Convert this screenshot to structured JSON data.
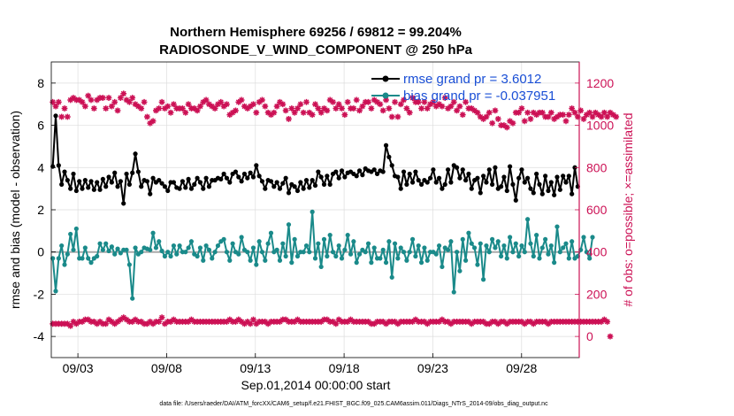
{
  "chart_data": {
    "type": "line",
    "title_line1": "Northern Hemisphere 69256 / 69812 = 99.204%",
    "title_line2": "RADIOSONDE_V_WIND_COMPONENT @ 250 hPa",
    "xlabel": "Sep.01,2014 00:00:00 start",
    "ylabel_left": "rmse and bias (model - observation)",
    "ylabel_right": "# of obs: o=possible; ×=assimilated",
    "footer": "data file: /Users/raeder/DAI/ATM_forcXX/CAM6_setup/f.e21.FHIST_BGC.f09_025.CAM6assim.011/Diags_NTrS_2014-09/obs_diag_output.nc",
    "x_range": [
      1.5,
      31.25
    ],
    "x_ticks": [
      3,
      8,
      13,
      18,
      23,
      28
    ],
    "x_tick_labels": [
      "09/03",
      "09/08",
      "09/13",
      "09/18",
      "09/23",
      "09/28"
    ],
    "ylim_left": [
      -5,
      9
    ],
    "yticks_left": [
      -4,
      -2,
      0,
      2,
      4,
      6,
      8
    ],
    "ylim_right": [
      -100,
      1300
    ],
    "yticks_right": [
      0,
      200,
      400,
      600,
      800,
      1000,
      1200
    ],
    "colors": {
      "rmse": "#000000",
      "bias": "#1a8a8a",
      "obs": "#cc1155",
      "zero": "#aaaaaa",
      "legend_text": "#1a4fd6",
      "grid": "#dddddd"
    },
    "legend": [
      {
        "label": "rmse grand pr = 3.6012",
        "series": "rmse"
      },
      {
        "label": "bias grand pr = -0.037951",
        "series": "bias"
      }
    ],
    "series": [
      {
        "name": "rmse",
        "axis": "left",
        "values": [
          4.05,
          6.45,
          4.1,
          3.2,
          3.8,
          3.4,
          3.0,
          3.7,
          2.9,
          3.35,
          3.0,
          3.4,
          3.05,
          3.35,
          2.95,
          3.3,
          2.95,
          3.45,
          3.1,
          3.55,
          3.3,
          3.75,
          3.1,
          3.35,
          2.3,
          3.7,
          3.2,
          3.75,
          4.65,
          3.8,
          3.1,
          3.4,
          3.35,
          2.75,
          3.5,
          3.3,
          3.4,
          3.25,
          3.1,
          2.9,
          3.3,
          3.3,
          3.05,
          3.0,
          3.35,
          3.05,
          3.45,
          3.0,
          3.2,
          3.5,
          3.3,
          3.0,
          3.5,
          3.1,
          3.4,
          3.4,
          3.5,
          3.45,
          3.7,
          3.5,
          3.3,
          3.7,
          3.8,
          3.55,
          3.35,
          3.7,
          3.5,
          3.75,
          3.55,
          4.1,
          3.6,
          3.35,
          3.0,
          3.4,
          3.35,
          3.1,
          3.3,
          3.0,
          3.25,
          3.5,
          2.8,
          3.2,
          3.1,
          2.9,
          3.3,
          3.0,
          3.4,
          3.05,
          3.4,
          3.15,
          3.8,
          3.55,
          3.2,
          3.6,
          3.2,
          3.7,
          3.8,
          3.5,
          3.85,
          3.55,
          3.75,
          3.8,
          3.7,
          3.6,
          3.85,
          3.65,
          3.95,
          3.85,
          3.8,
          3.9,
          3.7,
          3.85,
          3.8,
          5.05,
          4.5,
          4.1,
          3.6,
          3.55,
          3.0,
          3.8,
          3.2,
          3.7,
          3.3,
          3.8,
          3.4,
          3.2,
          3.4,
          3.3,
          3.5,
          3.9,
          3.3,
          3.5,
          3.0,
          3.2,
          3.9,
          3.3,
          4.1,
          4.0,
          3.5,
          3.9,
          3.4,
          3.7,
          3.0,
          3.4,
          3.5,
          2.8,
          3.6,
          3.3,
          3.9,
          3.2,
          4.0,
          3.0,
          3.1,
          3.55,
          2.9,
          4.05,
          3.2,
          2.45,
          3.5,
          3.9,
          3.3,
          3.5,
          3.0,
          2.8,
          3.7,
          3.2,
          2.75,
          3.6,
          2.9,
          3.3,
          2.7,
          3.55,
          2.95,
          3.6,
          3.3,
          3.6,
          2.75,
          4.0,
          3.1
        ]
      },
      {
        "name": "bias",
        "axis": "left",
        "values": [
          -0.3,
          -1.85,
          -0.3,
          0.3,
          -0.6,
          -0.1,
          0.85,
          0.1,
          1.1,
          -0.3,
          -0.3,
          0.2,
          -0.3,
          -0.5,
          -0.3,
          -0.2,
          0.4,
          0.1,
          0.4,
          0.05,
          0.25,
          -0.1,
          0.15,
          -0.05,
          0.1,
          0.1,
          -0.6,
          -2.2,
          0.2,
          -0.1,
          0.0,
          0.2,
          0.15,
          0.1,
          0.9,
          0.2,
          0.5,
          0.05,
          -0.2,
          0.0,
          -0.2,
          0.3,
          -0.1,
          0.3,
          0.0,
          0.0,
          0.2,
          0.5,
          -0.1,
          -0.2,
          0.2,
          -0.4,
          0.3,
          0.1,
          -0.3,
          0.0,
          0.3,
          0.5,
          0.6,
          0.0,
          -0.4,
          0.4,
          0.0,
          -0.1,
          0.7,
          0.1,
          0.0,
          -0.4,
          0.2,
          -0.6,
          0.5,
          0.0,
          -0.4,
          0.4,
          0.9,
          0.0,
          0.1,
          -0.4,
          0.4,
          -0.2,
          1.3,
          -0.5,
          0.6,
          -0.2,
          0.0,
          0.0,
          0.3,
          0.0,
          1.9,
          -0.3,
          0.4,
          -0.7,
          0.6,
          -0.2,
          0.8,
          0.0,
          -0.2,
          0.3,
          -0.3,
          0.1,
          0.8,
          -0.1,
          0.5,
          -0.5,
          -0.1,
          0.1,
          0.0,
          0.4,
          -0.5,
          0.2,
          -0.3,
          -0.3,
          0.1,
          -0.5,
          0.5,
          -1.2,
          0.4,
          -0.3,
          0.2,
          0.0,
          -0.4,
          0.0,
          0.6,
          -0.2,
          0.3,
          -0.5,
          0.2,
          -0.4,
          0.0,
          0.0,
          -0.1,
          0.3,
          -0.7,
          0.2,
          0.1,
          0.5,
          -1.9,
          0.0,
          -0.9,
          0.6,
          -0.4,
          0.9,
          0.4,
          0.2,
          -0.6,
          0.4,
          -1.3,
          0.3,
          0.0,
          0.6,
          0.2,
          0.5,
          -0.2,
          0.3,
          -0.3,
          0.7,
          0.0,
          0.4,
          -0.2,
          0.3,
          0.0,
          1.55,
          0.4,
          -0.2,
          0.8,
          -0.3,
          0.2,
          0.6,
          -0.1,
          0.3,
          -0.5,
          1.2,
          0.0,
          0.2,
          0.4,
          -0.3,
          0.5,
          -0.3,
          -0.2,
          0.1,
          0.7,
          0.0,
          -0.3,
          0.7
        ]
      },
      {
        "name": "obs_possible",
        "axis": "right",
        "values": [
          1110,
          1090,
          1110,
          1040,
          1080,
          1040,
          1120,
          1130,
          1120,
          1120,
          1110,
          1090,
          1140,
          1120,
          1080,
          1120,
          1130,
          1130,
          1080,
          1130,
          1090,
          1110,
          1070,
          1130,
          1150,
          1120,
          1110,
          1130,
          1100,
          1090,
          1080,
          1110,
          1040,
          1010,
          1020,
          1070,
          1080,
          1110,
          1080,
          1090,
          1060,
          1100,
          1080,
          1080,
          1080,
          1060,
          1100,
          1080,
          1080,
          1070,
          1090,
          1110,
          1120,
          1100,
          1090,
          1080,
          1100,
          1110,
          1090,
          1100,
          1050,
          1060,
          1070,
          1110,
          1120,
          1090,
          1080,
          1090,
          1100,
          1060,
          1110,
          1120,
          1090,
          1060,
          1050,
          1060,
          1090,
          1110,
          1100,
          1070,
          1030,
          1080,
          1060,
          1080,
          1100,
          1060,
          1110,
          1060,
          1050,
          1100,
          1080,
          1060,
          1080,
          1070,
          1120,
          1110,
          1080,
          1100,
          1080,
          1050,
          1110,
          1080,
          1080,
          1120,
          1070,
          1090,
          1110,
          1110,
          1080,
          1120,
          1110,
          1100,
          1070,
          1120,
          1080,
          1040,
          1110,
          1040,
          1100,
          1120,
          1080,
          1060,
          1130,
          1110,
          1110,
          1080,
          1110,
          1080,
          1100,
          1110,
          1090,
          1100,
          1090,
          1130,
          1080,
          1090,
          1110,
          1070,
          1090,
          1050,
          1110,
          1080,
          1080,
          1070,
          1060,
          1040,
          1030,
          1040,
          1060,
          1010,
          1070,
          1030,
          1000,
          1000,
          990,
          1020,
          1010,
          1060,
          1060,
          1080,
          1020,
          1060,
          1030,
          1060,
          1050,
          1060,
          1060,
          1040,
          1040,
          1060,
          1030,
          1040,
          1050,
          1050,
          1020,
          1050,
          1080,
          1060,
          1040,
          1070,
          1030,
          1050,
          1060,
          1040,
          1060,
          1050,
          1040,
          1060,
          1040,
          1060,
          1050,
          1040
        ]
      },
      {
        "name": "obs_assimilated",
        "axis": "right",
        "values": [
          60,
          60,
          60,
          60,
          60,
          60,
          50,
          70,
          60,
          70,
          70,
          80,
          80,
          70,
          70,
          60,
          70,
          60,
          60,
          80,
          70,
          60,
          70,
          80,
          90,
          80,
          70,
          70,
          80,
          70,
          70,
          60,
          60,
          70,
          60,
          70,
          70,
          90,
          60,
          70,
          70,
          80,
          70,
          70,
          70,
          70,
          70,
          80,
          70,
          70,
          70,
          70,
          70,
          70,
          70,
          70,
          70,
          70,
          70,
          70,
          80,
          70,
          70,
          80,
          70,
          60,
          70,
          60,
          80,
          60,
          70,
          70,
          70,
          60,
          70,
          70,
          70,
          70,
          80,
          80,
          70,
          70,
          70,
          80,
          70,
          70,
          70,
          70,
          70,
          70,
          70,
          70,
          80,
          80,
          70,
          70,
          60,
          80,
          70,
          70,
          70,
          80,
          70,
          70,
          70,
          70,
          70,
          70,
          60,
          60,
          70,
          70,
          70,
          60,
          70,
          70,
          70,
          60,
          70,
          70,
          70,
          70,
          70,
          80,
          70,
          70,
          70,
          60,
          70,
          70,
          70,
          70,
          80,
          70,
          70,
          60,
          70,
          70,
          70,
          70,
          70,
          70,
          60,
          70,
          70,
          70,
          70,
          60,
          60,
          70,
          70,
          60,
          70,
          70,
          60,
          70,
          70,
          70,
          70,
          70,
          60,
          70,
          70,
          60,
          70,
          70,
          70,
          70,
          60,
          70,
          70,
          70,
          70,
          70,
          70,
          70,
          70,
          70,
          70,
          70,
          70,
          70,
          70,
          70,
          70,
          70,
          70,
          80,
          70,
          0
        ]
      }
    ]
  }
}
